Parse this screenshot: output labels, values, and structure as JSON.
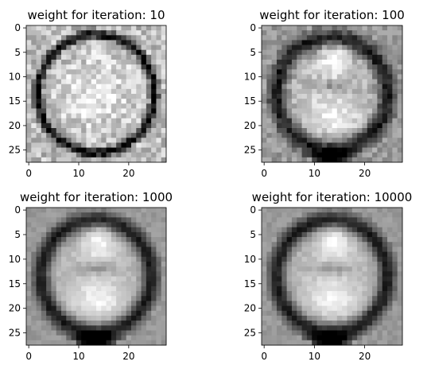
{
  "chart_data": [
    {
      "type": "heatmap",
      "title": "weight for iteration: 10",
      "colormap": "gray",
      "rows": 28,
      "cols": 28,
      "xlim": [
        0,
        27
      ],
      "ylim": [
        0,
        27
      ],
      "xticks": [
        "0",
        "10",
        "20"
      ],
      "yticks": [
        "0",
        "5",
        "10",
        "15",
        "20",
        "25"
      ],
      "pattern": "noisy_ring_with_bright_center",
      "description_hidden": true
    },
    {
      "type": "heatmap",
      "title": "weight for iteration: 100",
      "colormap": "gray",
      "rows": 28,
      "cols": 28,
      "xlim": [
        0,
        27
      ],
      "ylim": [
        0,
        27
      ],
      "xticks": [
        "0",
        "10",
        "20"
      ],
      "yticks": [
        "0",
        "5",
        "10",
        "15",
        "20",
        "25"
      ],
      "pattern": "smoothing_eight"
    },
    {
      "type": "heatmap",
      "title": "weight for iteration: 1000",
      "colormap": "gray",
      "rows": 28,
      "cols": 28,
      "xlim": [
        0,
        27
      ],
      "ylim": [
        0,
        27
      ],
      "xticks": [
        "0",
        "10",
        "20"
      ],
      "yticks": [
        "0",
        "5",
        "10",
        "15",
        "20",
        "25"
      ],
      "pattern": "smooth_eight"
    },
    {
      "type": "heatmap",
      "title": "weight for iteration: 10000",
      "colormap": "gray",
      "rows": 28,
      "cols": 28,
      "xlim": [
        0,
        27
      ],
      "ylim": [
        0,
        27
      ],
      "xticks": [
        "0",
        "10",
        "20"
      ],
      "yticks": [
        "0",
        "5",
        "10",
        "15",
        "20",
        "25"
      ],
      "pattern": "smooth_eight"
    }
  ]
}
